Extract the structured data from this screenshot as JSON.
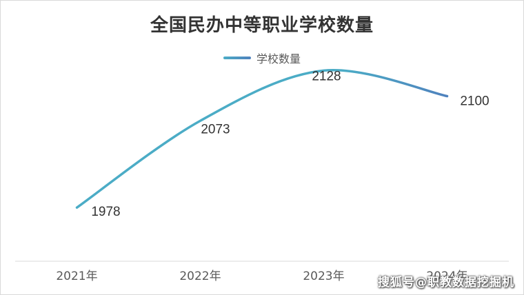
{
  "chart_data": {
    "type": "line",
    "title": "全国民办中等职业学校数量",
    "categories": [
      "2021年",
      "2022年",
      "2023年",
      "2024年"
    ],
    "series": [
      {
        "name": "学校数量",
        "values": [
          1978,
          2073,
          2128,
          2100
        ]
      }
    ],
    "data_labels": [
      "1978",
      "2073",
      "2128",
      "2100"
    ],
    "ylim": [
      1920,
      2160
    ],
    "smooth": true,
    "grid": false,
    "legend": "top-center",
    "colors": {
      "line_start": "#4bacc6",
      "line_end": "#4f81bd"
    }
  },
  "watermark": "搜狐号@职教数据挖掘机"
}
